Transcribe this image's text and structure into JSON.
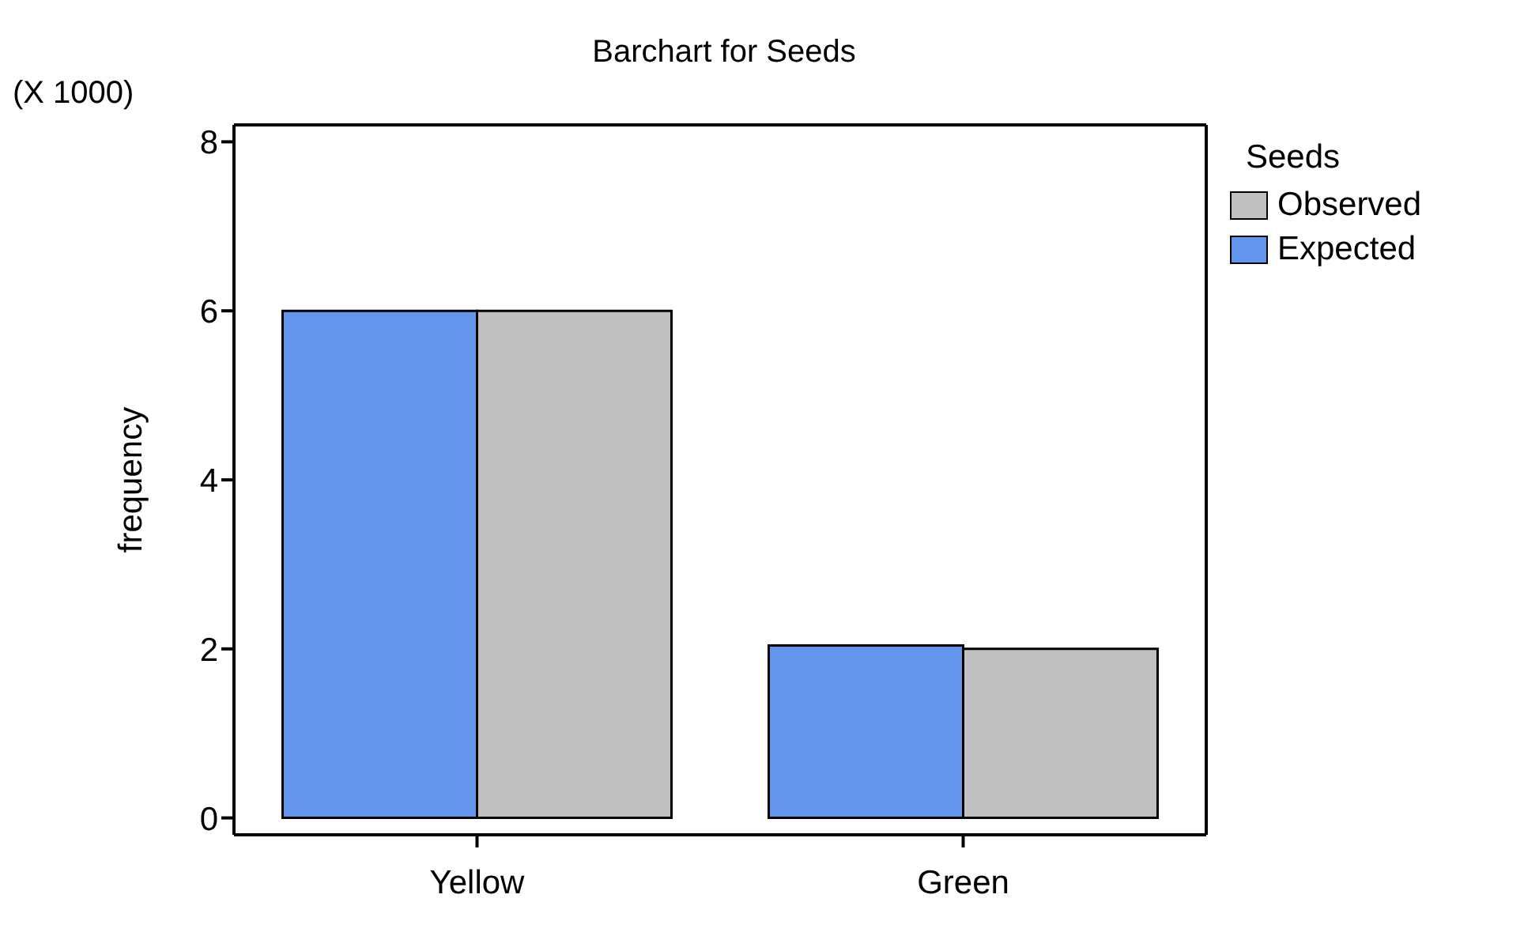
{
  "chart_data": {
    "type": "bar",
    "title": "Barchart for Seeds",
    "ylabel": "frequency",
    "legend_title": "Seeds",
    "annotations": [
      "(X 1000)"
    ],
    "categories": [
      "Yellow",
      "Green"
    ],
    "series": [
      {
        "name": "Expected",
        "color": "#6495ed",
        "values": [
          6.0,
          2.04
        ]
      },
      {
        "name": "Observed",
        "color": "#c0c0c0",
        "values": [
          6.0,
          2.0
        ]
      }
    ],
    "ylim": [
      -0.2,
      8.2
    ],
    "yticks": [
      0,
      2,
      4,
      6,
      8
    ],
    "legend": "top right"
  }
}
